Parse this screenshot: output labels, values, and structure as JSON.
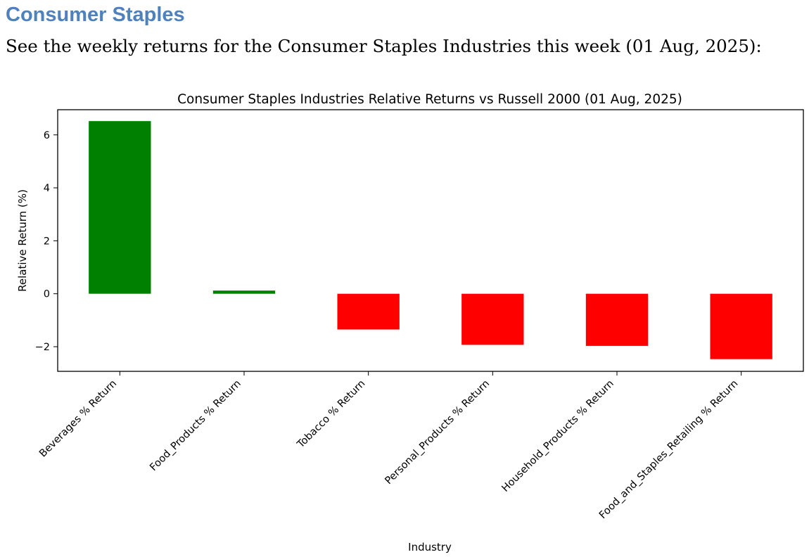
{
  "page": {
    "heading": "Consumer Staples",
    "intro": "See the weekly returns for the Consumer Staples Industries this week (01 Aug, 2025):"
  },
  "chart_data": {
    "type": "bar",
    "title": "Consumer Staples Industries Relative Returns vs Russell 2000 (01 Aug, 2025)",
    "xlabel": "Industry",
    "ylabel": "Relative Return (%)",
    "categories": [
      "Beverages % Return",
      "Food_Products % Return",
      "Tobacco % Return",
      "Personal_Products % Return",
      "Household_Products % Return",
      "Food_and_Staples_Retailing % Return"
    ],
    "values": [
      6.52,
      0.12,
      -1.35,
      -1.93,
      -1.97,
      -2.47
    ],
    "ylim": [
      -2.93,
      6.95
    ],
    "yticks": [
      -2,
      0,
      2,
      4,
      6
    ],
    "ytick_labels": [
      "−2",
      "0",
      "2",
      "4",
      "6"
    ],
    "grid": false,
    "legend": "none",
    "colors": {
      "positive": "#008000",
      "negative": "#ff0000"
    }
  }
}
